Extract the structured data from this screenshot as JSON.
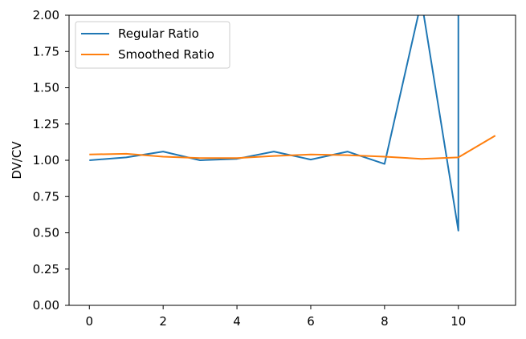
{
  "chart_data": {
    "type": "line",
    "title": "",
    "xlabel": "",
    "ylabel": "DV/CV",
    "xlim": [
      -0.55,
      11.55
    ],
    "ylim": [
      0,
      2
    ],
    "x_ticks": [
      0,
      2,
      4,
      6,
      8,
      10
    ],
    "x_tick_labels": [
      "0",
      "2",
      "4",
      "6",
      "8",
      "10"
    ],
    "y_ticks": [
      0.0,
      0.25,
      0.5,
      0.75,
      1.0,
      1.25,
      1.5,
      1.75,
      2.0
    ],
    "y_tick_labels": [
      "0.00",
      "0.25",
      "0.50",
      "0.75",
      "1.00",
      "1.25",
      "1.50",
      "1.75",
      "2.00"
    ],
    "grid": false,
    "legend_position": "upper-left",
    "series": [
      {
        "name": "Regular Ratio",
        "color": "#1f77b4",
        "x": [
          0,
          1,
          2,
          3,
          4,
          5,
          6,
          7,
          8,
          9,
          10,
          10
        ],
        "y": [
          1.0,
          1.02,
          1.06,
          1.0,
          1.01,
          1.06,
          1.005,
          1.06,
          0.975,
          2.1,
          0.515,
          2.5
        ]
      },
      {
        "name": "Smoothed Ratio",
        "color": "#ff7f0e",
        "x": [
          0,
          1,
          2,
          3,
          4,
          5,
          6,
          7,
          8,
          9,
          10,
          11
        ],
        "y": [
          1.04,
          1.045,
          1.025,
          1.015,
          1.015,
          1.03,
          1.04,
          1.035,
          1.025,
          1.01,
          1.02,
          1.17
        ]
      }
    ]
  }
}
